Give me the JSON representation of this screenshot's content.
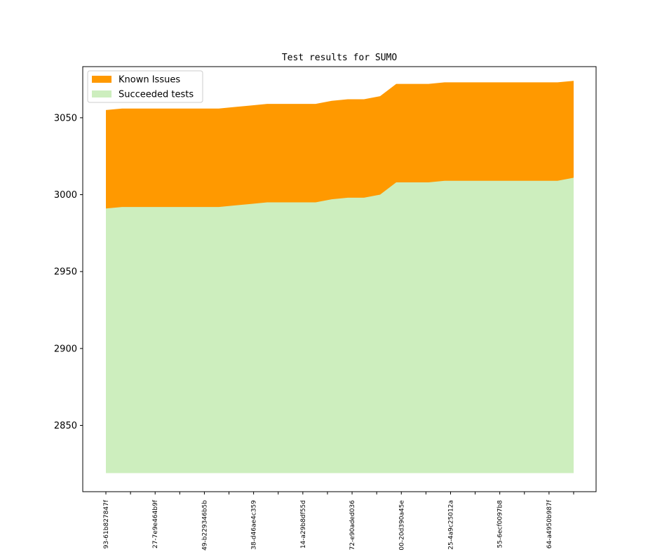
{
  "chart_data": {
    "type": "area",
    "title": "Test results for SUMO",
    "xlabel": "",
    "ylabel": "",
    "ylim": [
      2819,
      3083
    ],
    "yticks": [
      2850,
      2900,
      2950,
      3000,
      3050
    ],
    "xtick_labels": [
      "93-61b827847f",
      "",
      "27-7e9e464b9f",
      "",
      "49-b229346b5b",
      "",
      "38-d46ae4c359",
      "",
      "14-a29b8df55d",
      "",
      "72-e90aded036",
      "",
      "00-20d390a45e",
      "",
      "25-4a9c25012a",
      "",
      "55-6ecf0097b8",
      "",
      "64-a4950b987f",
      ""
    ],
    "x": [
      0,
      1,
      2,
      3,
      4,
      5,
      6,
      7,
      8,
      9,
      10,
      11,
      12,
      13,
      14,
      15,
      16,
      17,
      18,
      19,
      20,
      21,
      22,
      23,
      24,
      25,
      26,
      27,
      28,
      29
    ],
    "baseline": 2819,
    "series": [
      {
        "name": "Succeeded tests",
        "color": "#cdeebe",
        "values": [
          2991,
          2992,
          2992,
          2992,
          2992,
          2992,
          2992,
          2992,
          2993,
          2994,
          2995,
          2995,
          2995,
          2995,
          2997,
          2998,
          2998,
          3000,
          3008,
          3008,
          3008,
          3009,
          3009,
          3009,
          3009,
          3009,
          3009,
          3009,
          3009,
          3011
        ]
      },
      {
        "name": "Known Issues",
        "color": "#ff9900",
        "values": [
          3055,
          3056,
          3056,
          3056,
          3056,
          3056,
          3056,
          3056,
          3057,
          3058,
          3059,
          3059,
          3059,
          3059,
          3061,
          3062,
          3062,
          3064,
          3072,
          3072,
          3072,
          3073,
          3073,
          3073,
          3073,
          3073,
          3073,
          3073,
          3073,
          3074
        ]
      }
    ],
    "legend": {
      "placement": "top-left",
      "entries": [
        "Known Issues",
        "Succeeded tests"
      ]
    },
    "grid": false
  }
}
